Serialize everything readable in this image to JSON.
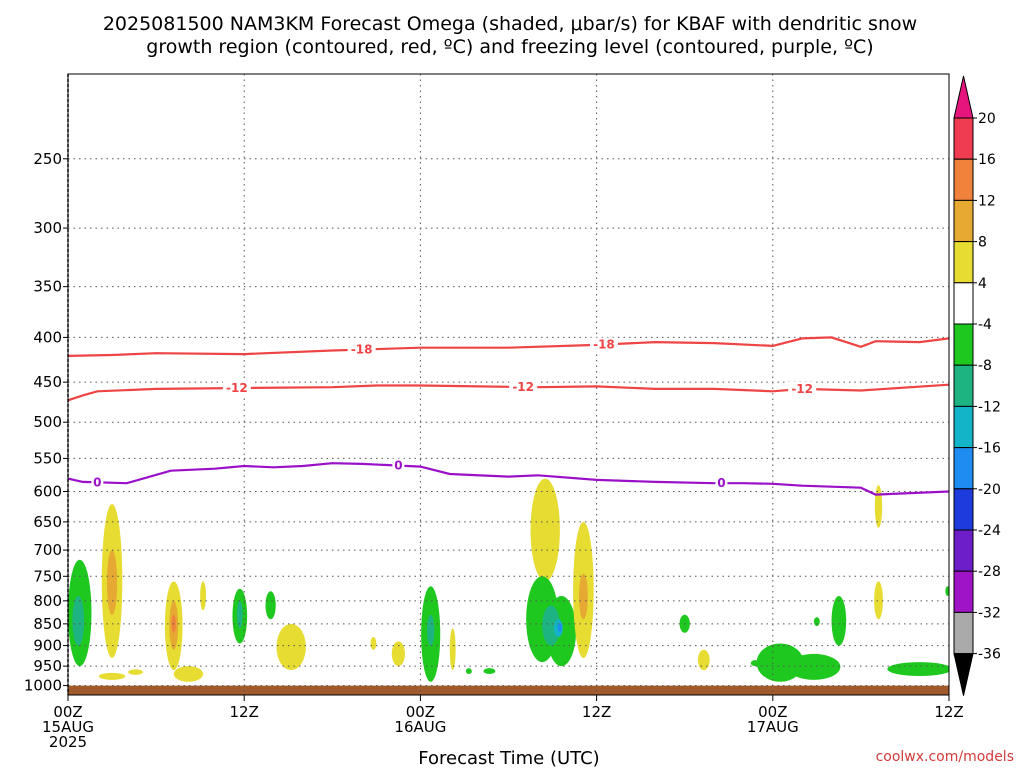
{
  "header": {
    "title_line1": "2025081500 NAM3KM Forecast Omega (shaded, μbar/s) for KBAF with dendritic snow",
    "title_line2": "growth region (contoured, red, ºC) and freezing level (contoured, purple, ºC)"
  },
  "footer": {
    "xlabel": "Forecast Time (UTC)",
    "credit": "coolwx.com/models"
  },
  "chart_data": {
    "type": "time-height cross section",
    "title": "2025081500 NAM3KM Forecast Omega (shaded, μbar/s) for KBAF with dendritic snow growth region (contoured, red, ºC) and freezing level (contoured, purple, ºC)",
    "xlabel": "Forecast Time (UTC)",
    "x_range_hours": [
      0,
      60
    ],
    "x_ticks": [
      {
        "hour": 0,
        "lines": [
          "00Z",
          "15AUG",
          "2025"
        ]
      },
      {
        "hour": 12,
        "lines": [
          "12Z"
        ]
      },
      {
        "hour": 24,
        "lines": [
          "00Z",
          "16AUG"
        ]
      },
      {
        "hour": 36,
        "lines": [
          "12Z"
        ]
      },
      {
        "hour": 48,
        "lines": [
          "00Z",
          "17AUG"
        ]
      },
      {
        "hour": 60,
        "lines": [
          "12Z"
        ]
      }
    ],
    "y_ticks_hpa": [
      250,
      300,
      350,
      400,
      450,
      500,
      550,
      600,
      650,
      700,
      750,
      800,
      850,
      900,
      950,
      1000
    ],
    "y_range_hpa": [
      200,
      1025
    ],
    "y_scale": "log-pressure",
    "grid": true,
    "colorbar": {
      "unit": "μbar/s",
      "labels": [
        "20",
        "16",
        "12",
        "8",
        "4",
        "-4",
        "-8",
        "-12",
        "-16",
        "-20",
        "-24",
        "-28",
        "-32",
        "-36"
      ],
      "colors": [
        "#f03c50",
        "#f0823c",
        "#e6aa32",
        "#e6dc32",
        "#ffffff",
        "#1ec81e",
        "#1eb482",
        "#14b4c8",
        "#1e8cf0",
        "#1e3cdc",
        "#6e1ec8",
        "#a014c8",
        "#aaaaaa"
      ],
      "top_arrow_color": "#e6147d",
      "bottom_arrow_color": "#000000"
    },
    "contours": [
      {
        "value": -18,
        "label": "-18",
        "color": "#ee4444",
        "points": [
          [
            0,
            420
          ],
          [
            3,
            419
          ],
          [
            6,
            417
          ],
          [
            12,
            418
          ],
          [
            18,
            414
          ],
          [
            24,
            411
          ],
          [
            30,
            411
          ],
          [
            36,
            408
          ],
          [
            40,
            405
          ],
          [
            44,
            406
          ],
          [
            48,
            409
          ],
          [
            50,
            401
          ],
          [
            52,
            400
          ],
          [
            54,
            410
          ],
          [
            55,
            404
          ],
          [
            58,
            405
          ],
          [
            60,
            401
          ]
        ],
        "label_hours": [
          20,
          36.5
        ]
      },
      {
        "value": -12,
        "label": "-12",
        "color": "#ee4444",
        "points": [
          [
            0,
            472
          ],
          [
            1,
            466
          ],
          [
            2,
            461
          ],
          [
            6,
            458
          ],
          [
            12,
            457
          ],
          [
            18,
            456
          ],
          [
            21,
            454
          ],
          [
            24,
            454
          ],
          [
            28,
            455
          ],
          [
            32,
            456
          ],
          [
            36,
            455
          ],
          [
            40,
            458
          ],
          [
            44,
            458
          ],
          [
            48,
            461
          ],
          [
            50,
            458
          ],
          [
            54,
            460
          ],
          [
            60,
            453
          ]
        ],
        "label_hours": [
          11.5,
          31,
          50
        ]
      },
      {
        "value": 0,
        "label": "0",
        "color": "#9a10c8",
        "points": [
          [
            0,
            580
          ],
          [
            1,
            585
          ],
          [
            4,
            587
          ],
          [
            7,
            568
          ],
          [
            10,
            565
          ],
          [
            12,
            561
          ],
          [
            14,
            563
          ],
          [
            16,
            561
          ],
          [
            18,
            557
          ],
          [
            20,
            558
          ],
          [
            24,
            562
          ],
          [
            26,
            573
          ],
          [
            30,
            577
          ],
          [
            32,
            575
          ],
          [
            36,
            582
          ],
          [
            40,
            585
          ],
          [
            44,
            587
          ],
          [
            46,
            587
          ],
          [
            48,
            588
          ],
          [
            50,
            591
          ],
          [
            54,
            594
          ],
          [
            55,
            605
          ],
          [
            60,
            600
          ]
        ],
        "label_hours": [
          2,
          22.5,
          44.5
        ]
      }
    ],
    "omega_areas": [
      {
        "hour": 0.8,
        "hpa_top": 718,
        "hpa_bottom": 950,
        "hour_halfwidth": 0.8,
        "value": -6
      },
      {
        "hour": 0.7,
        "hpa_top": 790,
        "hpa_bottom": 900,
        "hour_halfwidth": 0.4,
        "value": -10
      },
      {
        "hour": 3,
        "hpa_top": 620,
        "hpa_bottom": 930,
        "hour_halfwidth": 0.7,
        "value": 6
      },
      {
        "hour": 3,
        "hpa_top": 700,
        "hpa_bottom": 830,
        "hour_halfwidth": 0.35,
        "value": 10
      },
      {
        "hour": 3,
        "hpa_top": 967,
        "hpa_bottom": 985,
        "hour_halfwidth": 0.9,
        "value": 6
      },
      {
        "hour": 4.6,
        "hpa_top": 958,
        "hpa_bottom": 972,
        "hour_halfwidth": 0.5,
        "value": 6
      },
      {
        "hour": 7.2,
        "hpa_top": 760,
        "hpa_bottom": 960,
        "hour_halfwidth": 0.6,
        "value": 6
      },
      {
        "hour": 7.2,
        "hpa_top": 800,
        "hpa_bottom": 910,
        "hour_halfwidth": 0.3,
        "value": 10
      },
      {
        "hour": 7.2,
        "hpa_top": 830,
        "hpa_bottom": 870,
        "hour_halfwidth": 0.15,
        "value": 14
      },
      {
        "hour": 8.2,
        "hpa_top": 950,
        "hpa_bottom": 990,
        "hour_halfwidth": 1.0,
        "value": 6
      },
      {
        "hour": 9.2,
        "hpa_top": 760,
        "hpa_bottom": 820,
        "hour_halfwidth": 0.2,
        "value": 6
      },
      {
        "hour": 11.7,
        "hpa_top": 775,
        "hpa_bottom": 895,
        "hour_halfwidth": 0.5,
        "value": -6
      },
      {
        "hour": 11.7,
        "hpa_top": 800,
        "hpa_bottom": 860,
        "hour_halfwidth": 0.2,
        "value": -10
      },
      {
        "hour": 13.8,
        "hpa_top": 780,
        "hpa_bottom": 840,
        "hour_halfwidth": 0.35,
        "value": -6
      },
      {
        "hour": 15.2,
        "hpa_top": 850,
        "hpa_bottom": 960,
        "hour_halfwidth": 1.0,
        "value": 6
      },
      {
        "hour": 20.8,
        "hpa_top": 880,
        "hpa_bottom": 910,
        "hour_halfwidth": 0.2,
        "value": 6
      },
      {
        "hour": 22.5,
        "hpa_top": 890,
        "hpa_bottom": 950,
        "hour_halfwidth": 0.45,
        "value": 6
      },
      {
        "hour": 24.7,
        "hpa_top": 770,
        "hpa_bottom": 990,
        "hour_halfwidth": 0.65,
        "value": -6
      },
      {
        "hour": 24.7,
        "hpa_top": 830,
        "hpa_bottom": 900,
        "hour_halfwidth": 0.25,
        "value": -10
      },
      {
        "hour": 26.2,
        "hpa_top": 860,
        "hpa_bottom": 960,
        "hour_halfwidth": 0.2,
        "value": 6
      },
      {
        "hour": 27.3,
        "hpa_top": 955,
        "hpa_bottom": 970,
        "hour_halfwidth": 0.2,
        "value": -6
      },
      {
        "hour": 28.7,
        "hpa_top": 955,
        "hpa_bottom": 970,
        "hour_halfwidth": 0.4,
        "value": -6
      },
      {
        "hour": 32.5,
        "hpa_top": 580,
        "hpa_bottom": 760,
        "hour_halfwidth": 1.0,
        "value": 6
      },
      {
        "hour": 32.3,
        "hpa_top": 750,
        "hpa_bottom": 940,
        "hour_halfwidth": 1.1,
        "value": -6
      },
      {
        "hour": 33.6,
        "hpa_top": 790,
        "hpa_bottom": 950,
        "hour_halfwidth": 1.0,
        "value": -6
      },
      {
        "hour": 32.9,
        "hpa_top": 810,
        "hpa_bottom": 900,
        "hour_halfwidth": 0.6,
        "value": -10
      },
      {
        "hour": 33.4,
        "hpa_top": 840,
        "hpa_bottom": 880,
        "hour_halfwidth": 0.3,
        "value": -14
      },
      {
        "hour": 33.5,
        "hpa_top": 848,
        "hpa_bottom": 868,
        "hour_halfwidth": 0.15,
        "value": -18
      },
      {
        "hour": 35.1,
        "hpa_top": 650,
        "hpa_bottom": 930,
        "hour_halfwidth": 0.7,
        "value": 6
      },
      {
        "hour": 35.1,
        "hpa_top": 745,
        "hpa_bottom": 840,
        "hour_halfwidth": 0.3,
        "value": 10
      },
      {
        "hour": 42.0,
        "hpa_top": 830,
        "hpa_bottom": 870,
        "hour_halfwidth": 0.35,
        "value": -6
      },
      {
        "hour": 43.3,
        "hpa_top": 910,
        "hpa_bottom": 960,
        "hour_halfwidth": 0.4,
        "value": 6
      },
      {
        "hour": 46.8,
        "hpa_top": 935,
        "hpa_bottom": 950,
        "hour_halfwidth": 0.3,
        "value": -6
      },
      {
        "hour": 48.5,
        "hpa_top": 895,
        "hpa_bottom": 990,
        "hour_halfwidth": 1.6,
        "value": -6
      },
      {
        "hour": 50.8,
        "hpa_top": 920,
        "hpa_bottom": 985,
        "hour_halfwidth": 1.8,
        "value": -6
      },
      {
        "hour": 52.5,
        "hpa_top": 790,
        "hpa_bottom": 900,
        "hour_halfwidth": 0.5,
        "value": -6
      },
      {
        "hour": 51.0,
        "hpa_top": 835,
        "hpa_bottom": 855,
        "hour_halfwidth": 0.2,
        "value": -6
      },
      {
        "hour": 55.2,
        "hpa_top": 590,
        "hpa_bottom": 660,
        "hour_halfwidth": 0.25,
        "value": 6
      },
      {
        "hour": 55.2,
        "hpa_top": 760,
        "hpa_bottom": 840,
        "hour_halfwidth": 0.3,
        "value": 6
      },
      {
        "hour": 58.0,
        "hpa_top": 940,
        "hpa_bottom": 975,
        "hour_halfwidth": 2.2,
        "value": -6
      },
      {
        "hour": 59.9,
        "hpa_top": 770,
        "hpa_bottom": 790,
        "hour_halfwidth": 0.15,
        "value": -6
      }
    ],
    "terrain": {
      "color": "#a05a2c",
      "hpa_top": 1000
    }
  }
}
